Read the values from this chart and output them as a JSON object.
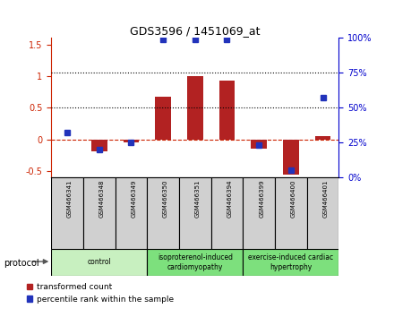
{
  "title": "GDS3596 / 1451069_at",
  "samples": [
    "GSM466341",
    "GSM466348",
    "GSM466349",
    "GSM466350",
    "GSM466351",
    "GSM466394",
    "GSM466399",
    "GSM466400",
    "GSM466401"
  ],
  "transformed_count": [
    0.0,
    -0.18,
    -0.05,
    0.68,
    1.0,
    0.93,
    -0.15,
    -0.55,
    0.05
  ],
  "percentile_rank_pct": [
    32,
    20,
    25,
    99,
    99,
    99,
    23,
    5,
    57
  ],
  "bar_color_red": "#b22222",
  "bar_color_blue": "#2233bb",
  "dotted_line_y": [
    0.5,
    1.0
  ],
  "dashed_line_y": 0.0,
  "ylim_left": [
    -0.6,
    1.6
  ],
  "ylim_right": [
    0,
    100
  ],
  "yticks_left": [
    -0.5,
    0.0,
    0.5,
    1.0,
    1.5
  ],
  "ytick_labels_left": [
    "-0.5",
    "0",
    "0.5",
    "1",
    "1.5"
  ],
  "yticks_right": [
    0,
    25,
    50,
    75,
    100
  ],
  "ytick_labels_right": [
    "0%",
    "25%",
    "50%",
    "75%",
    "100%"
  ],
  "groups": [
    {
      "label": "control",
      "start": 0,
      "end": 3,
      "color": "#c8f0c0"
    },
    {
      "label": "isoproterenol-induced\ncardiomyopathy",
      "start": 3,
      "end": 6,
      "color": "#7de07d"
    },
    {
      "label": "exercise-induced cardiac\nhypertrophy",
      "start": 6,
      "end": 9,
      "color": "#7de07d"
    }
  ],
  "protocol_label": "protocol",
  "legend_red": "transformed count",
  "legend_blue": "percentile rank within the sample",
  "bar_width": 0.5,
  "marker_size": 5,
  "sample_box_color": "#d0d0d0",
  "left_tick_color": "#cc2200",
  "right_tick_color": "#0000cc"
}
